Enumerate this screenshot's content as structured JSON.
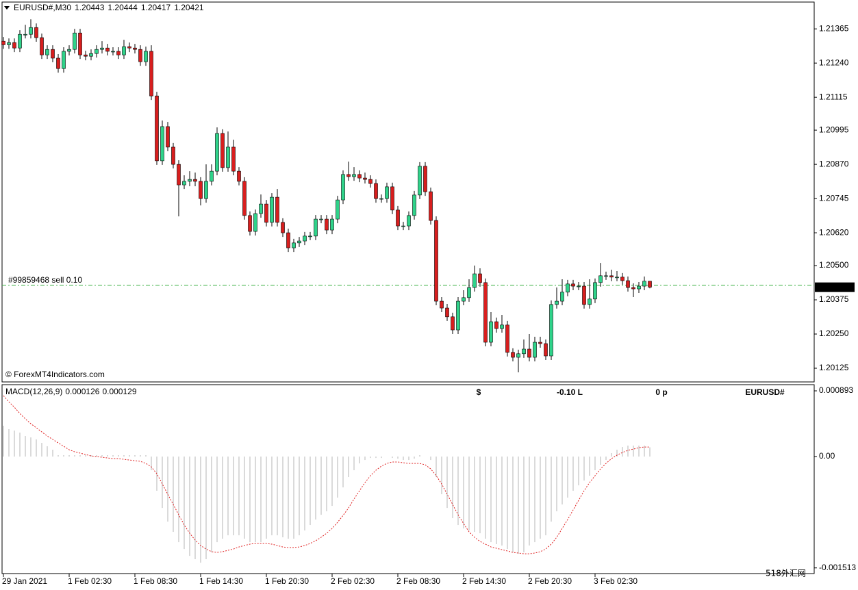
{
  "chart_data": [
    {
      "type": "candlestick",
      "title": "EURUSD#,M30",
      "bull_color": "#2fd38a",
      "bear_color": "#d81e1e",
      "ylim": [
        1.20075,
        1.21463
      ],
      "yticks": [
        1.21365,
        {
          "value": 1.2124,
          "label": "1.21240"
        },
        1.21115,
        1.20995,
        {
          "value": 1.2087,
          "label": "1.20870"
        },
        1.20745,
        {
          "value": 1.2062,
          "label": "1.20620"
        },
        {
          "value": 1.205,
          "label": "1.20500"
        },
        1.20375,
        {
          "value": 1.2025,
          "label": "1.20250"
        },
        1.20125
      ],
      "categories": [
        "29 Jan 2021",
        null,
        null,
        null,
        null,
        null,
        null,
        null,
        null,
        null,
        null,
        null,
        "1 Feb 02:30",
        null,
        null,
        null,
        null,
        null,
        null,
        null,
        null,
        null,
        null,
        null,
        "1 Feb 08:30",
        null,
        null,
        null,
        null,
        null,
        null,
        null,
        null,
        null,
        null,
        null,
        "1 Feb 14:30",
        null,
        null,
        null,
        null,
        null,
        null,
        null,
        null,
        null,
        null,
        null,
        "1 Feb 20:30",
        null,
        null,
        null,
        null,
        null,
        null,
        null,
        null,
        null,
        null,
        null,
        "2 Feb 02:30",
        null,
        null,
        null,
        null,
        null,
        null,
        null,
        null,
        null,
        null,
        null,
        "2 Feb 08:30",
        null,
        null,
        null,
        null,
        null,
        null,
        null,
        null,
        null,
        null,
        null,
        "2 Feb 14:30",
        null,
        null,
        null,
        null,
        null,
        null,
        null,
        null,
        null,
        null,
        null,
        "2 Feb 20:30",
        null,
        null,
        null,
        null,
        null,
        null,
        null,
        null,
        null,
        null,
        null,
        "3 Feb 02:30",
        null,
        null,
        null,
        null,
        null,
        null,
        null,
        null,
        null,
        null
      ],
      "open": [
        1.2132,
        1.21307,
        1.21315,
        1.21295,
        1.21345,
        1.21345,
        1.2137,
        1.21333,
        1.2127,
        1.2129,
        1.21258,
        1.2122,
        1.21283,
        1.2129,
        1.2135,
        1.2127,
        1.21265,
        1.21275,
        1.2129,
        1.21295,
        1.21283,
        1.21283,
        1.2127,
        1.213,
        1.21295,
        1.2129,
        1.21245,
        1.21283,
        1.2112,
        1.20883,
        1.21008,
        1.20933,
        1.2087,
        1.20795,
        1.20808,
        1.20815,
        1.20808,
        1.20745,
        1.20808,
        1.20845,
        1.20983,
        1.20858,
        1.20933,
        1.20845,
        1.20808,
        1.20683,
        1.20625,
        1.2069,
        1.20725,
        1.20658,
        1.2075,
        1.20658,
        1.2062,
        1.20565,
        1.20583,
        1.2059,
        1.20608,
        1.20608,
        1.2067,
        1.2067,
        1.2063,
        1.2067,
        1.2074,
        1.20833,
        1.20825,
        1.20833,
        1.2082,
        1.20815,
        1.208,
        1.20745,
        1.20745,
        1.20788,
        1.20703,
        1.20645,
        1.20645,
        1.20683,
        1.20758,
        1.20863,
        1.2077,
        1.20665,
        1.2037,
        1.20345,
        1.20313,
        1.20265,
        1.2037,
        1.20383,
        1.2042,
        1.2047,
        1.20438,
        1.2022,
        1.20295,
        1.2027,
        1.20283,
        1.20183,
        1.20165,
        1.20178,
        1.20195,
        1.20165,
        1.2022,
        1.20215,
        1.2017,
        1.20358,
        1.2037,
        1.20403,
        1.20433,
        1.20425,
        1.20425,
        1.20358,
        1.20378,
        1.20438,
        1.20463,
        1.20463,
        1.20458,
        1.20458,
        1.20445,
        1.2042,
        1.20415,
        1.20425,
        1.20443
      ],
      "high": [
        1.21335,
        1.2133,
        1.2133,
        1.2136,
        1.2138,
        1.214,
        1.21385,
        1.21348,
        1.21305,
        1.21305,
        1.21273,
        1.21298,
        1.21305,
        1.21365,
        1.21365,
        1.21285,
        1.2129,
        1.21305,
        1.2132,
        1.2131,
        1.21298,
        1.21298,
        1.21325,
        1.21315,
        1.2131,
        1.21305,
        1.213,
        1.21305,
        1.21135,
        1.2103,
        1.21025,
        1.20948,
        1.20885,
        1.2083,
        1.20845,
        1.2084,
        1.20823,
        1.2087,
        1.2087,
        1.21005,
        1.20998,
        1.2099,
        1.2096,
        1.2086,
        1.20823,
        1.20698,
        1.20705,
        1.2076,
        1.2074,
        1.20765,
        1.2078,
        1.20673,
        1.20635,
        1.20598,
        1.20605,
        1.20623,
        1.20623,
        1.20685,
        1.20685,
        1.20685,
        1.20685,
        1.20755,
        1.20848,
        1.2088,
        1.2086,
        1.20848,
        1.2084,
        1.2083,
        1.20815,
        1.2076,
        1.20803,
        1.20803,
        1.20718,
        1.2066,
        1.20698,
        1.20773,
        1.20878,
        1.20878,
        1.20785,
        1.2068,
        1.20385,
        1.2036,
        1.20328,
        1.20385,
        1.2041,
        1.2045,
        1.205,
        1.2049,
        1.20453,
        1.2033,
        1.2031,
        1.2032,
        1.20298,
        1.20198,
        1.20193,
        1.2023,
        1.2025,
        1.2024,
        1.2024,
        1.2023,
        1.20373,
        1.2042,
        1.2045,
        1.20448,
        1.20448,
        1.2044,
        1.2044,
        1.2045,
        1.20453,
        1.2051,
        1.20478,
        1.20485,
        1.2048,
        1.20473,
        1.2046,
        1.20435,
        1.2044,
        1.2046,
        1.20444
      ],
      "low": [
        1.21292,
        1.21292,
        1.2128,
        1.2128,
        1.2133,
        1.2133,
        1.21318,
        1.21255,
        1.21255,
        1.21243,
        1.21205,
        1.21205,
        1.21268,
        1.21275,
        1.21255,
        1.2125,
        1.2125,
        1.2126,
        1.21275,
        1.21268,
        1.21268,
        1.21255,
        1.21255,
        1.2128,
        1.21275,
        1.2123,
        1.2123,
        1.21105,
        1.20868,
        1.20868,
        1.20918,
        1.20855,
        1.2068,
        1.2078,
        1.2079,
        1.2079,
        1.2072,
        1.2073,
        1.20793,
        1.2083,
        1.20843,
        1.20843,
        1.2083,
        1.20793,
        1.20668,
        1.2061,
        1.2061,
        1.20675,
        1.20643,
        1.20643,
        1.20643,
        1.20605,
        1.2055,
        1.2055,
        1.20568,
        1.20575,
        1.20593,
        1.20593,
        1.20655,
        1.20615,
        1.20615,
        1.20655,
        1.20725,
        1.2081,
        1.2081,
        1.20805,
        1.208,
        1.20785,
        1.2073,
        1.2073,
        1.2073,
        1.20688,
        1.2063,
        1.2063,
        1.2063,
        1.20668,
        1.20743,
        1.20755,
        1.2065,
        1.20355,
        1.2033,
        1.20298,
        1.2025,
        1.2025,
        1.20355,
        1.20368,
        1.20405,
        1.20423,
        1.20205,
        1.20205,
        1.20255,
        1.20255,
        1.20168,
        1.2015,
        1.2011,
        1.20163,
        1.2015,
        1.2015,
        1.202,
        1.20155,
        1.20155,
        1.20343,
        1.20355,
        1.20388,
        1.2041,
        1.2041,
        1.20343,
        1.20343,
        1.20363,
        1.20423,
        1.20448,
        1.20443,
        1.20443,
        1.2043,
        1.20405,
        1.20385,
        1.204,
        1.2041,
        1.20417
      ],
      "close": [
        1.21307,
        1.21315,
        1.21295,
        1.21345,
        1.21345,
        1.2137,
        1.21333,
        1.2127,
        1.2129,
        1.21258,
        1.2122,
        1.21283,
        1.2129,
        1.2135,
        1.2127,
        1.21265,
        1.21275,
        1.2129,
        1.21295,
        1.21283,
        1.21283,
        1.2127,
        1.213,
        1.21295,
        1.2129,
        1.21245,
        1.21283,
        1.2112,
        1.20883,
        1.21008,
        1.20933,
        1.2087,
        1.20795,
        1.20808,
        1.20815,
        1.20808,
        1.20745,
        1.20808,
        1.20845,
        1.20983,
        1.20858,
        1.20933,
        1.20845,
        1.20808,
        1.20683,
        1.20625,
        1.2069,
        1.20725,
        1.20658,
        1.2075,
        1.20658,
        1.2062,
        1.20565,
        1.20583,
        1.2059,
        1.20608,
        1.20608,
        1.2067,
        1.2067,
        1.2063,
        1.2067,
        1.2074,
        1.20833,
        1.20825,
        1.20833,
        1.2082,
        1.20815,
        1.208,
        1.20745,
        1.20745,
        1.20788,
        1.20703,
        1.20645,
        1.20645,
        1.20683,
        1.20758,
        1.20863,
        1.2077,
        1.20665,
        1.2037,
        1.20345,
        1.20313,
        1.20265,
        1.2037,
        1.20383,
        1.2042,
        1.2047,
        1.20438,
        1.2022,
        1.20295,
        1.2027,
        1.20283,
        1.20183,
        1.20165,
        1.20178,
        1.20195,
        1.20165,
        1.2022,
        1.20215,
        1.2017,
        1.20358,
        1.2037,
        1.20403,
        1.20433,
        1.20425,
        1.20425,
        1.20358,
        1.20378,
        1.20438,
        1.20463,
        1.20463,
        1.20458,
        1.20458,
        1.20445,
        1.2042,
        1.20415,
        1.20425,
        1.20443,
        1.20421
      ],
      "order_line": {
        "text": "#99859468 sell 0.10",
        "price": 1.20428,
        "color": "#3cb043"
      },
      "watermark": "© ForexMT4Indicators.com"
    },
    {
      "type": "macd",
      "title": "MACD(12,26,9)",
      "ylim": [
        -0.00159,
        0.000977
      ],
      "yticks": [
        0.000893,
        {
          "value": 0,
          "label": "0.00"
        },
        -0.001513
      ],
      "series": [
        {
          "color": "#c0c0c0",
          "values": [
            0.000419,
            0.000372,
            0.000353,
            0.000326,
            0.000279,
            0.00026,
            0.000233,
            0.000186,
            0.00014,
            9.3e-05,
            1.9e-05,
            1.9e-05,
            1.9e-05,
            1.9e-05,
            1.9e-05,
            1.9e-05,
            1.9e-05,
            1.9e-05,
            1.9e-05,
            1.9e-05,
            1.9e-05,
            1.9e-05,
            1.9e-05,
            1.9e-05,
            1.9e-05,
            1.9e-05,
            1.9e-05,
            -0.000186,
            -0.000465,
            -0.000698,
            -0.000884,
            -0.001023,
            -0.001163,
            -0.001256,
            -0.001349,
            -0.001395,
            -0.001442,
            -0.001395,
            -0.001302,
            -0.001163,
            -0.001116,
            -0.00107,
            -0.00107,
            -0.00107,
            -0.001116,
            -0.001163,
            -0.001163,
            -0.001163,
            -0.001116,
            -0.00107,
            -0.00107,
            -0.001097,
            -0.001116,
            -0.001116,
            -0.00107,
            -0.001004,
            -0.00093,
            -0.000856,
            -0.000791,
            -0.000744,
            -0.00067,
            -0.000558,
            -0.000419,
            -0.000279,
            -0.000186,
            -9.3e-05,
            -4.7e-05,
            -1.9e-05,
            -1.9e-05,
            -1.9e-05,
            0,
            -1.9e-05,
            -2.8e-05,
            -4.7e-05,
            -4.7e-05,
            -2.8e-05,
            1.9e-05,
            0,
            -4.7e-05,
            -0.000279,
            -0.000512,
            -0.000698,
            -0.000837,
            -0.00093,
            -0.000977,
            -0.001004,
            -0.001023,
            -0.001042,
            -0.001116,
            -0.001163,
            -0.00119,
            -0.001209,
            -0.001256,
            -0.001302,
            -0.001321,
            -0.001302,
            -0.001209,
            -0.001163,
            -0.001116,
            -0.00107,
            -0.000884,
            -0.000744,
            -0.000651,
            -0.000558,
            -0.000465,
            -0.000391,
            -0.000326,
            -0.00026,
            -0.000186,
            -0.000112,
            -4.7e-05,
            4.7e-05,
            9.3e-05,
            0.00013,
            0.000149,
            0.000149,
            0.000149,
            0.000149,
            0.000126
          ]
        },
        {
          "color": "#e02020",
          "values": [
            0.000828,
            0.000744,
            0.00067,
            0.000586,
            0.000512,
            0.000446,
            0.000391,
            0.000335,
            0.000279,
            0.000233,
            0.000186,
            0.00014,
            9.3e-05,
            6.5e-05,
            4.7e-05,
            2.8e-05,
            9e-06,
            0,
            -9e-06,
            -1.9e-05,
            -2.8e-05,
            -2.8e-05,
            -3.7e-05,
            -4.7e-05,
            -5.6e-05,
            -6.5e-05,
            -9.3e-05,
            -0.00014,
            -0.000233,
            -0.000372,
            -0.000512,
            -0.000651,
            -0.000791,
            -0.00093,
            -0.001042,
            -0.001135,
            -0.001209,
            -0.001256,
            -0.001293,
            -0.001302,
            -0.001293,
            -0.001274,
            -0.001256,
            -0.001228,
            -0.001209,
            -0.00119,
            -0.001181,
            -0.001181,
            -0.001181,
            -0.00119,
            -0.001209,
            -0.001228,
            -0.001237,
            -0.001237,
            -0.001228,
            -0.001209,
            -0.001181,
            -0.001144,
            -0.001097,
            -0.001042,
            -0.000977,
            -0.000893,
            -0.0008,
            -0.000698,
            -0.000577,
            -0.000465,
            -0.000353,
            -0.00026,
            -0.000186,
            -0.00013,
            -9.3e-05,
            -7.4e-05,
            -7.4e-05,
            -8.4e-05,
            -9.3e-05,
            -9.3e-05,
            -9.3e-05,
            -0.000112,
            -0.000167,
            -0.00026,
            -0.000372,
            -0.000512,
            -0.000651,
            -0.000791,
            -0.000911,
            -0.001023,
            -0.001097,
            -0.001153,
            -0.00119,
            -0.001228,
            -0.001246,
            -0.001265,
            -0.001283,
            -0.001302,
            -0.001311,
            -0.001321,
            -0.001321,
            -0.001311,
            -0.001293,
            -0.001256,
            -0.00119,
            -0.001097,
            -0.000977,
            -0.000856,
            -0.000725,
            -0.000595,
            -0.000465,
            -0.000353,
            -0.00026,
            -0.000167,
            -9.3e-05,
            -2.8e-05,
            1.9e-05,
            5.6e-05,
            8.4e-05,
            0.000102,
            0.000121,
            0.00013,
            0.000129
          ]
        }
      ],
      "annotations": [
        {
          "text": "$",
          "color": "#1ed41e"
        },
        {
          "text": "-0.10 L",
          "color": "#e31414"
        },
        {
          "text": "0 p",
          "color": "#ff8c00"
        },
        {
          "text": "EURUSD#",
          "color": "#7a8ba0"
        }
      ]
    }
  ],
  "site_watermark": "518外汇网"
}
